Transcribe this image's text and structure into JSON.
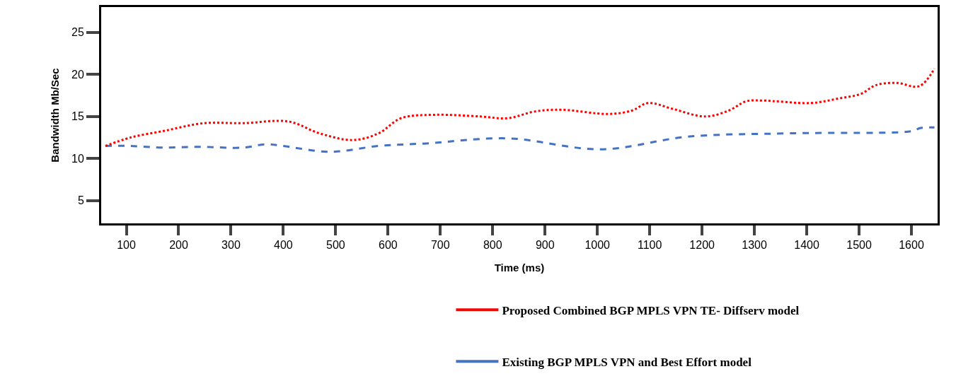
{
  "chart_data": {
    "type": "line",
    "xlabel": "Time (ms)",
    "ylabel": "Bandwidth Mb/Sec",
    "xlim": [
      52,
      1650
    ],
    "ylim": [
      2.3,
      28
    ],
    "xticks": [
      100,
      200,
      300,
      400,
      500,
      600,
      700,
      800,
      900,
      1000,
      1100,
      1200,
      1300,
      1400,
      1500,
      1600
    ],
    "yticks": [
      5,
      10,
      15,
      20,
      25
    ],
    "legend": "bottom",
    "series": [
      {
        "name": "Proposed Combined BGP MPLS VPN TE- Diffserv model",
        "color": "#ff0000",
        "line_style": "dotted",
        "x": [
          60,
          108,
          173,
          248,
          323,
          410,
          469,
          533,
          582,
          625,
          690,
          776,
          829,
          881,
          932,
          1021,
          1066,
          1097,
          1144,
          1206,
          1251,
          1284,
          1313,
          1408,
          1458,
          1504,
          1531,
          1571,
          1615,
          1644
        ],
        "values": [
          11.5,
          12.5,
          13.3,
          14.2,
          14.2,
          14.4,
          13.0,
          12.2,
          13.0,
          14.8,
          15.2,
          15.0,
          14.8,
          15.6,
          15.8,
          15.3,
          15.7,
          16.6,
          15.9,
          15.0,
          15.7,
          16.8,
          16.9,
          16.6,
          17.1,
          17.7,
          18.7,
          19.0,
          18.6,
          20.7
        ]
      },
      {
        "name": "Existing BGP MPLS VPN and Best Effort model",
        "color": "#4472c4",
        "line_style": "dashed",
        "x": [
          60,
          108,
          167,
          237,
          323,
          366,
          399,
          490,
          582,
          673,
          829,
          1007,
          1173,
          1369,
          1605,
          1615,
          1644
        ],
        "values": [
          11.5,
          11.5,
          11.3,
          11.4,
          11.3,
          11.7,
          11.5,
          10.8,
          11.5,
          11.8,
          12.4,
          11.1,
          12.6,
          13.0,
          13.3,
          13.6,
          13.7
        ]
      }
    ]
  }
}
